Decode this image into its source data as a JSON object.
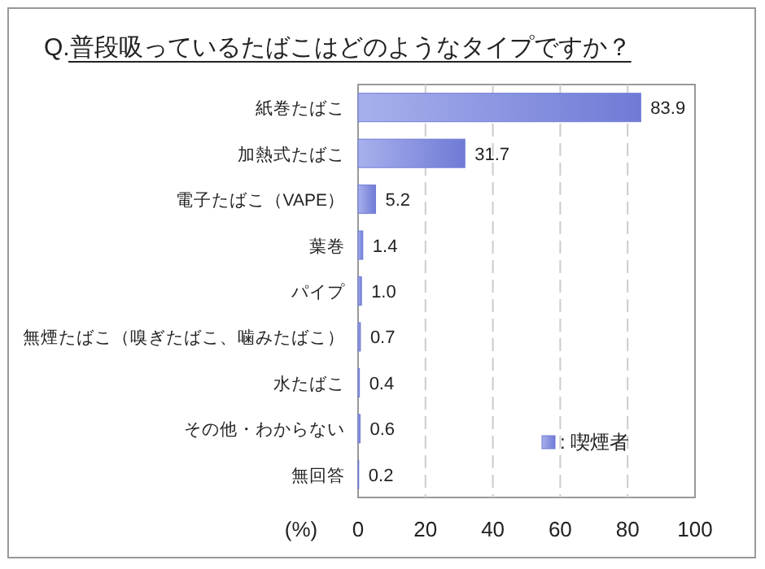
{
  "chart_data": {
    "type": "bar",
    "orientation": "horizontal",
    "title": "Q.普段吸っているたばこはどのようなタイプですか？",
    "xlabel": "(%)",
    "categories": [
      "紙巻たばこ",
      "加熱式たばこ",
      "電子たばこ（VAPE）",
      "葉巻",
      "パイプ",
      "無煙たばこ（嗅ぎたばこ、噛みたばこ）",
      "水たばこ",
      "その他・わからない",
      "無回答"
    ],
    "series": [
      {
        "name": ": 喫煙者",
        "color": "#6f7bd6",
        "values": [
          83.9,
          31.7,
          5.2,
          1.4,
          1.0,
          0.7,
          0.4,
          0.6,
          0.2
        ]
      }
    ],
    "value_labels": [
      "83.9",
      "31.7",
      "5.2",
      "1.4",
      "1.0",
      "0.7",
      "0.4",
      "0.6",
      "0.2"
    ],
    "xlim": [
      0,
      100
    ],
    "xticks": [
      0,
      20,
      40,
      60,
      80,
      100
    ],
    "grid": "x",
    "legend": "bottom right"
  }
}
